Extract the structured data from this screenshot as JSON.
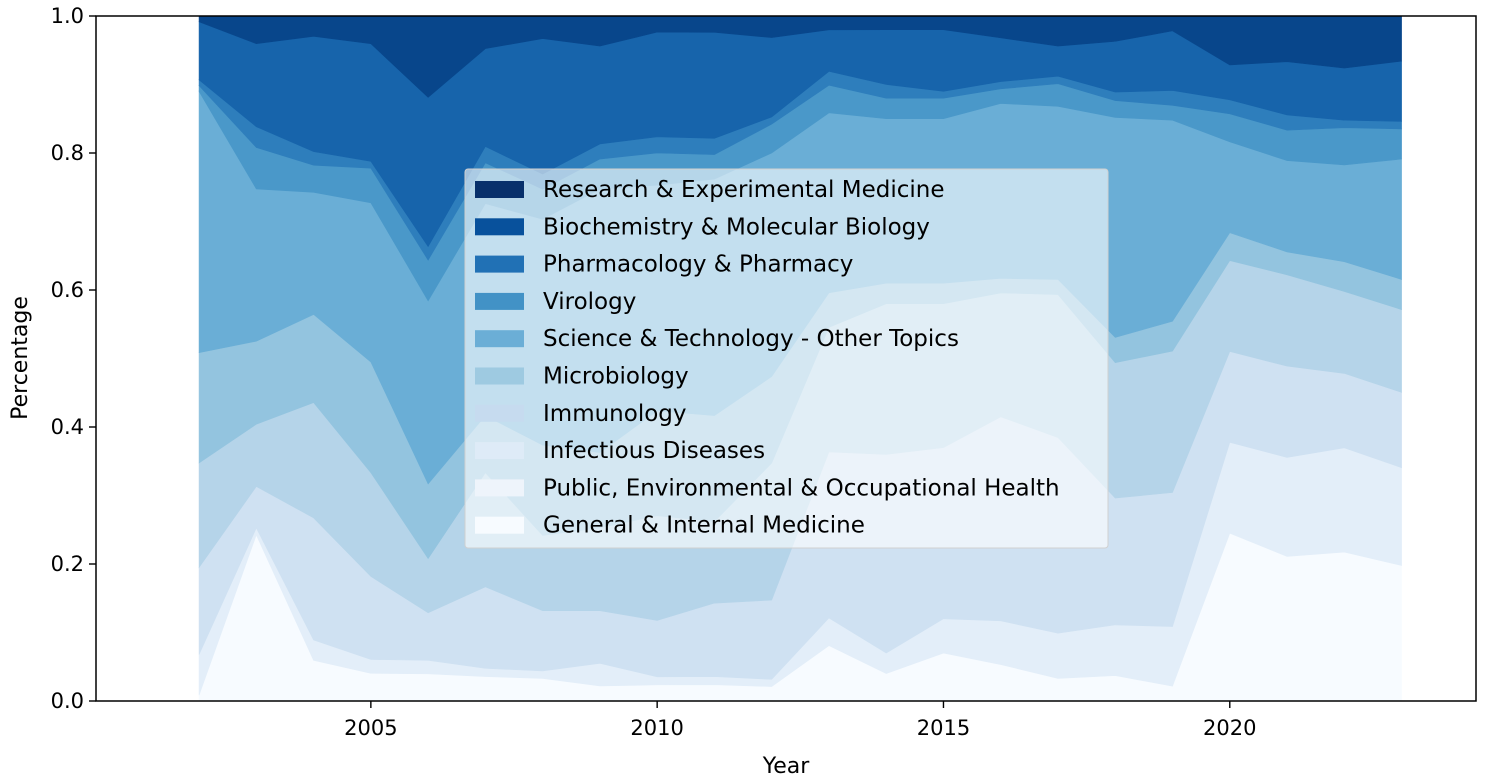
{
  "chart_data": {
    "type": "area",
    "stacked": true,
    "normalized": true,
    "xlabel": "Year",
    "ylabel": "Percentage",
    "xlim": [
      2000.2,
      2024.3
    ],
    "ylim": [
      0,
      1
    ],
    "x": [
      2002,
      2003,
      2004,
      2005,
      2006,
      2007,
      2008,
      2009,
      2010,
      2011,
      2012,
      2013,
      2014,
      2015,
      2016,
      2017,
      2018,
      2019,
      2020,
      2021,
      2022,
      2023
    ],
    "x_ticks": [
      2005,
      2010,
      2015,
      2020
    ],
    "x_tick_labels": [
      "2005",
      "2010",
      "2015",
      "2020"
    ],
    "y_ticks": [
      0,
      0.2,
      0.4,
      0.6,
      0.8,
      1.0
    ],
    "y_tick_labels": [
      "0.0",
      "0.2",
      "0.4",
      "0.6",
      "0.8",
      "1.0"
    ],
    "grid": false,
    "legend_position": "center",
    "series": [
      {
        "name": "General & Internal Medicine",
        "color": "#f7fbff",
        "values": [
          0.01,
          0.24,
          0.06,
          0.04,
          0.04,
          0.03,
          0.03,
          0.02,
          0.02,
          0.02,
          0.02,
          0.08,
          0.04,
          0.07,
          0.05,
          0.03,
          0.03,
          0.02,
          0.24,
          0.19,
          0.2,
          0.18
        ]
      },
      {
        "name": "Public, Environmental & Occupational Health",
        "color": "#e3eef9",
        "values": [
          0.07,
          0.01,
          0.03,
          0.02,
          0.02,
          0.01,
          0.01,
          0.03,
          0.01,
          0.01,
          0.01,
          0.04,
          0.03,
          0.05,
          0.06,
          0.06,
          0.06,
          0.08,
          0.13,
          0.13,
          0.14,
          0.13
        ]
      },
      {
        "name": "Infectious Diseases",
        "color": "#cfe1f2",
        "values": [
          0.15,
          0.06,
          0.18,
          0.12,
          0.07,
          0.1,
          0.08,
          0.07,
          0.07,
          0.09,
          0.11,
          0.24,
          0.29,
          0.25,
          0.28,
          0.26,
          0.15,
          0.18,
          0.13,
          0.12,
          0.1,
          0.1
        ]
      },
      {
        "name": "Immunology",
        "color": "#b5d4e9",
        "values": [
          0.18,
          0.09,
          0.17,
          0.15,
          0.08,
          0.14,
          0.1,
          0.11,
          0.13,
          0.1,
          0.19,
          0.18,
          0.22,
          0.21,
          0.17,
          0.19,
          0.16,
          0.19,
          0.13,
          0.12,
          0.11,
          0.11
        ]
      },
      {
        "name": "Microbiology",
        "color": "#93c4df",
        "values": [
          0.19,
          0.12,
          0.13,
          0.16,
          0.11,
          0.07,
          0.12,
          0.1,
          0.13,
          0.13,
          0.12,
          0.05,
          0.03,
          0.03,
          0.02,
          0.02,
          0.03,
          0.04,
          0.04,
          0.03,
          0.04,
          0.04
        ]
      },
      {
        "name": "Science & Technology - Other Topics",
        "color": "#6aaed6",
        "values": [
          0.45,
          0.22,
          0.18,
          0.23,
          0.27,
          0.26,
          0.3,
          0.35,
          0.28,
          0.29,
          0.31,
          0.26,
          0.24,
          0.24,
          0.24,
          0.23,
          0.26,
          0.27,
          0.13,
          0.12,
          0.13,
          0.16
        ]
      },
      {
        "name": "Virology",
        "color": "#4a98c9",
        "values": [
          0.01,
          0.06,
          0.04,
          0.05,
          0.06,
          0.05,
          0.04,
          0.04,
          0.04,
          0.03,
          0.04,
          0.04,
          0.03,
          0.03,
          0.02,
          0.03,
          0.02,
          0.02,
          0.04,
          0.04,
          0.05,
          0.04
        ]
      },
      {
        "name": "Pharmacology & Pharmacy",
        "color": "#2e7ebc",
        "values": [
          0.01,
          0.03,
          0.02,
          0.01,
          0.02,
          0.02,
          0.02,
          0.02,
          0.02,
          0.02,
          0.01,
          0.02,
          0.02,
          0.01,
          0.01,
          0.01,
          0.01,
          0.02,
          0.02,
          0.02,
          0.01,
          0.01
        ]
      },
      {
        "name": "Biochemistry & Molecular Biology",
        "color": "#1764ab",
        "values": [
          0.1,
          0.12,
          0.17,
          0.17,
          0.22,
          0.12,
          0.18,
          0.13,
          0.13,
          0.13,
          0.11,
          0.06,
          0.08,
          0.09,
          0.06,
          0.04,
          0.06,
          0.08,
          0.05,
          0.07,
          0.07,
          0.08
        ]
      },
      {
        "name": "Research & Experimental Medicine",
        "color": "#08468b",
        "values": [
          0.01,
          0.04,
          0.03,
          0.04,
          0.12,
          0.04,
          0.03,
          0.04,
          0.02,
          0.02,
          0.03,
          0.02,
          0.02,
          0.02,
          0.03,
          0.04,
          0.03,
          0.02,
          0.07,
          0.06,
          0.07,
          0.06
        ]
      }
    ],
    "legend_order": [
      "Research & Experimental Medicine",
      "Biochemistry & Molecular Biology",
      "Pharmacology & Pharmacy",
      "Virology",
      "Science & Technology - Other Topics",
      "Microbiology",
      "Immunology",
      "Infectious Diseases",
      "Public, Environmental & Occupational Health",
      "General & Internal Medicine"
    ],
    "legend_colors": [
      "#08306b",
      "#08519c",
      "#2171b5",
      "#4292c6",
      "#6baed6",
      "#9ecae1",
      "#c6dbef",
      "#deebf7",
      "#eef4fb",
      "#f7fbff"
    ]
  }
}
